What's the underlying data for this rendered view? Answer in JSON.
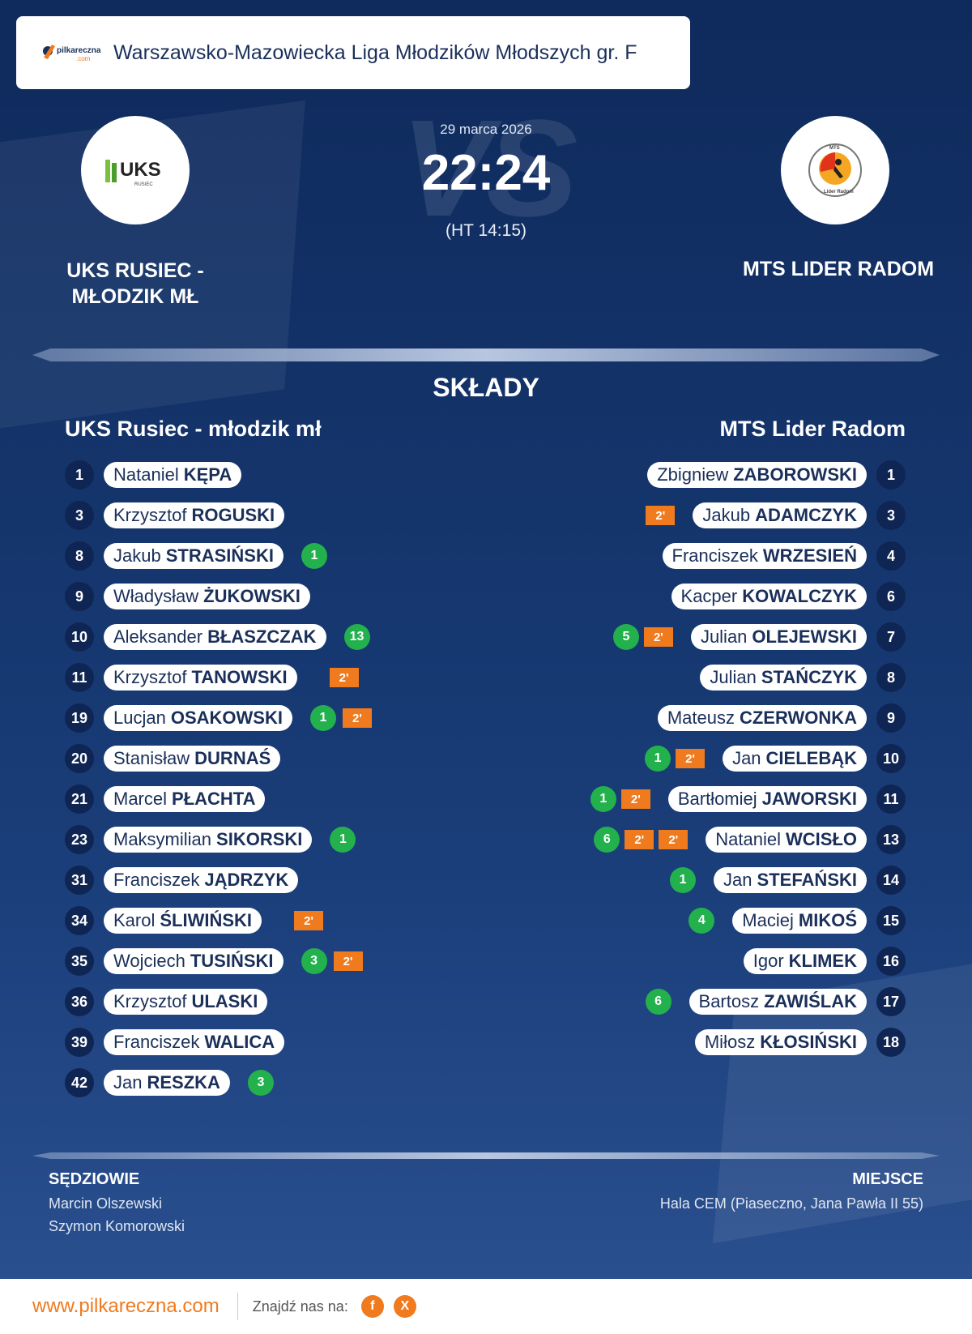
{
  "league": {
    "name": "Warszawsko-Mazowiecka Liga Młodzików Młodszych gr. F",
    "brand": "pilkareczna",
    "brand_sub": ".com"
  },
  "match": {
    "date": "29 marca 2026",
    "vs": "VS",
    "score": "22:24",
    "halftime": "(HT 14:15)"
  },
  "home": {
    "name": "UKS RUSIEC - MŁODZIK MŁ",
    "logo_text": "UKS",
    "logo_sub": "RUSIEC"
  },
  "away": {
    "name": "MTS LIDER RADOM",
    "logo_text": "MTS",
    "logo_sub": "Lider Radom"
  },
  "lineups": {
    "title": "SKŁADY",
    "home_title": "UKS Rusiec - młodzik mł",
    "away_title": "MTS Lider Radom",
    "home_players": [
      {
        "number": "1",
        "first": "Nataniel",
        "last": "KĘPA",
        "goals": "",
        "suspensions": 0
      },
      {
        "number": "3",
        "first": "Krzysztof",
        "last": "ROGUSKI",
        "goals": "",
        "suspensions": 0
      },
      {
        "number": "8",
        "first": "Jakub",
        "last": "STRASIŃSKI",
        "goals": "1",
        "suspensions": 0
      },
      {
        "number": "9",
        "first": "Władysław",
        "last": "ŻUKOWSKI",
        "goals": "",
        "suspensions": 0
      },
      {
        "number": "10",
        "first": "Aleksander",
        "last": "BŁASZCZAK",
        "goals": "13",
        "suspensions": 0
      },
      {
        "number": "11",
        "first": "Krzysztof",
        "last": "TANOWSKI",
        "goals": "",
        "suspensions": 1
      },
      {
        "number": "19",
        "first": "Lucjan",
        "last": "OSAKOWSKI",
        "goals": "1",
        "suspensions": 1
      },
      {
        "number": "20",
        "first": "Stanisław",
        "last": "DURNAŚ",
        "goals": "",
        "suspensions": 0
      },
      {
        "number": "21",
        "first": "Marcel",
        "last": "PŁACHTA",
        "goals": "",
        "suspensions": 0
      },
      {
        "number": "23",
        "first": "Maksymilian",
        "last": "SIKORSKI",
        "goals": "1",
        "suspensions": 0
      },
      {
        "number": "31",
        "first": "Franciszek",
        "last": "JĄDRZYK",
        "goals": "",
        "suspensions": 0
      },
      {
        "number": "34",
        "first": "Karol",
        "last": "ŚLIWIŃSKI",
        "goals": "",
        "suspensions": 1
      },
      {
        "number": "35",
        "first": "Wojciech",
        "last": "TUSIŃSKI",
        "goals": "3",
        "suspensions": 1
      },
      {
        "number": "36",
        "first": "Krzysztof",
        "last": "ULASKI",
        "goals": "",
        "suspensions": 0
      },
      {
        "number": "39",
        "first": "Franciszek",
        "last": "WALICA",
        "goals": "",
        "suspensions": 0
      },
      {
        "number": "42",
        "first": "Jan",
        "last": "RESZKA",
        "goals": "3",
        "suspensions": 0
      }
    ],
    "away_players": [
      {
        "number": "1",
        "first": "Zbigniew",
        "last": "ZABOROWSKI",
        "goals": "",
        "suspensions": 0
      },
      {
        "number": "3",
        "first": "Jakub",
        "last": "ADAMCZYK",
        "goals": "",
        "suspensions": 1
      },
      {
        "number": "4",
        "first": "Franciszek",
        "last": "WRZESIEŃ",
        "goals": "",
        "suspensions": 0
      },
      {
        "number": "6",
        "first": "Kacper",
        "last": "KOWALCZYK",
        "goals": "",
        "suspensions": 0
      },
      {
        "number": "7",
        "first": "Julian",
        "last": "OLEJEWSKI",
        "goals": "5",
        "suspensions": 1
      },
      {
        "number": "8",
        "first": "Julian",
        "last": "STAŃCZYK",
        "goals": "",
        "suspensions": 0
      },
      {
        "number": "9",
        "first": "Mateusz",
        "last": "CZERWONKA",
        "goals": "",
        "suspensions": 0
      },
      {
        "number": "10",
        "first": "Jan",
        "last": "CIELEBĄK",
        "goals": "1",
        "suspensions": 1
      },
      {
        "number": "11",
        "first": "Bartłomiej",
        "last": "JAWORSKI",
        "goals": "1",
        "suspensions": 1
      },
      {
        "number": "13",
        "first": "Nataniel",
        "last": "WCISŁO",
        "goals": "6",
        "suspensions": 2
      },
      {
        "number": "14",
        "first": "Jan",
        "last": "STEFAŃSKI",
        "goals": "1",
        "suspensions": 0
      },
      {
        "number": "15",
        "first": "Maciej",
        "last": "MIKOŚ",
        "goals": "4",
        "suspensions": 0
      },
      {
        "number": "16",
        "first": "Igor",
        "last": "KLIMEK",
        "goals": "",
        "suspensions": 0
      },
      {
        "number": "17",
        "first": "Bartosz",
        "last": "ZAWIŚLAK",
        "goals": "6",
        "suspensions": 0
      },
      {
        "number": "18",
        "first": "Miłosz",
        "last": "KŁOSIŃSKI",
        "goals": "",
        "suspensions": 0
      }
    ],
    "suspension_label": "2'"
  },
  "officials": {
    "label": "SĘDZIOWIE",
    "names": [
      "Marcin Olszewski",
      "Szymon Komorowski"
    ]
  },
  "venue": {
    "label": "MIEJSCE",
    "name": "Hala CEM (Piaseczno, Jana Pawła II 55)"
  },
  "footer": {
    "url": "www.pilkareczna.com",
    "find_us": "Znajdź nas na:",
    "social": [
      {
        "icon": "facebook-icon",
        "glyph": "f"
      },
      {
        "icon": "x-icon",
        "glyph": "X"
      }
    ]
  },
  "colors": {
    "accent": "#f07a1e",
    "goal": "#22b14c",
    "navy": "#0f2553",
    "background": "#15366e"
  }
}
